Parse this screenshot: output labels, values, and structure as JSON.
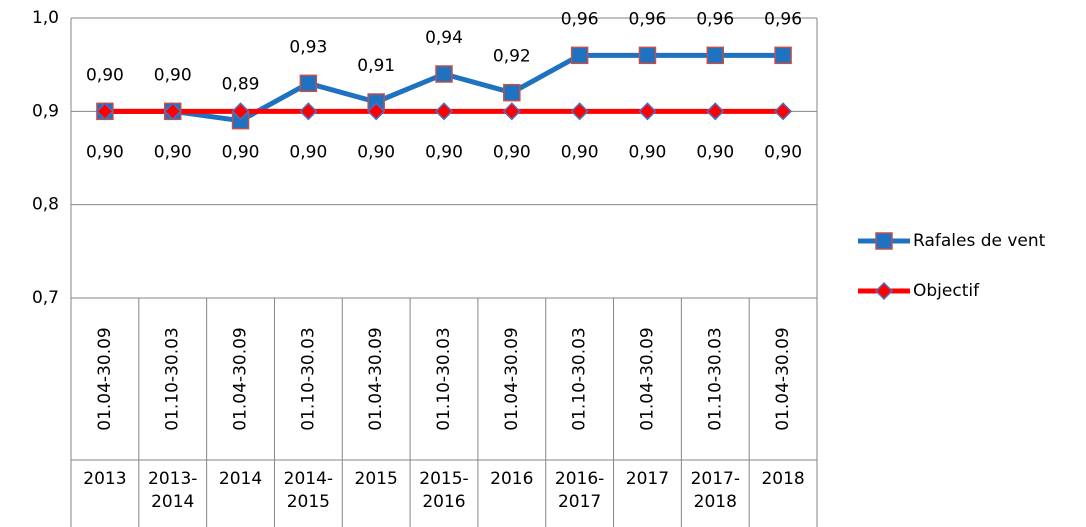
{
  "chart_data": {
    "type": "line",
    "categories": [
      "01.04-30.09",
      "01.10-30.03",
      "01.04-30.09",
      "01.10-30.03",
      "01.04-30.09",
      "01.10-30.03",
      "01.04-30.09",
      "01.10-30.03",
      "01.04-30.09",
      "01.10-30.03",
      "01.04-30.09"
    ],
    "category_groups": [
      "2013",
      "2013-2014",
      "2014",
      "2014-2015",
      "2015",
      "2015-2016",
      "2016",
      "2016-2017",
      "2017",
      "2017-2018",
      "2018"
    ],
    "series": [
      {
        "name": "Rafales de vent",
        "color": "#1f72c0",
        "marker": "square",
        "marker_edge": "#c0504d",
        "values": [
          0.9,
          0.9,
          0.89,
          0.93,
          0.91,
          0.94,
          0.92,
          0.96,
          0.96,
          0.96,
          0.96
        ],
        "value_labels": [
          "0,90",
          "0,90",
          "0,89",
          "0,93",
          "0,91",
          "0,94",
          "0,92",
          "0,96",
          "0,96",
          "0,96",
          "0,96"
        ]
      },
      {
        "name": "Objectif",
        "color": "#ff0000",
        "marker": "diamond",
        "marker_edge": "#4f6fc0",
        "values": [
          0.9,
          0.9,
          0.9,
          0.9,
          0.9,
          0.9,
          0.9,
          0.9,
          0.9,
          0.9,
          0.9
        ],
        "value_labels": [
          "0,90",
          "0,90",
          "0,90",
          "0,90",
          "0,90",
          "0,90",
          "0,90",
          "0,90",
          "0,90",
          "0,90",
          "0,90"
        ]
      }
    ],
    "ylim": [
      0.7,
      1.0
    ],
    "yticks": [
      {
        "value": 0.7,
        "label": "0,7"
      },
      {
        "value": 0.8,
        "label": "0,8"
      },
      {
        "value": 0.9,
        "label": "0,9"
      },
      {
        "value": 1.0,
        "label": "1,0"
      }
    ],
    "grid": true,
    "legend": "right"
  }
}
